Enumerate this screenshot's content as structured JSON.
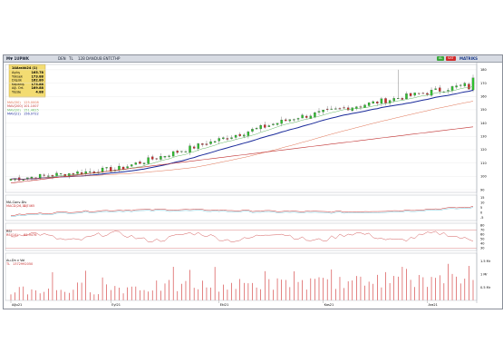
{
  "toolbar": {
    "symbol": "M▼ 1UPWK",
    "items": [
      "DEN",
      "TL",
      "12B",
      "DAN",
      "DUB",
      "ENTCTHP"
    ],
    "right_label": "MATRIKS",
    "buttons": [
      {
        "label": "AL",
        "color": "#3aa83a"
      },
      {
        "label": "SAT",
        "color": "#d02a2a"
      }
    ]
  },
  "info_box": {
    "title": "14Aralık24 (1)",
    "rows": [
      {
        "label": "Açılış",
        "value": "165.78"
      },
      {
        "label": "Yüksek",
        "value": "173.88"
      },
      {
        "label": "Düşük",
        "value": "162.80"
      },
      {
        "label": "Kapanış",
        "value": "173.88"
      },
      {
        "label": "Ağ. Ort.",
        "value": "169.88"
      },
      {
        "label": "Yüzde",
        "value": "4.88"
      }
    ]
  },
  "price_panel": {
    "legend": [
      {
        "label": "MAV(50)",
        "value": "125.0008",
        "color": "#e07050"
      },
      {
        "label": "MAV(200)",
        "value": "101.1007",
        "color": "#c03030"
      },
      {
        "label": "MAV(20)",
        "value": "151.4625",
        "color": "#60b860"
      },
      {
        "label": "MAV(21)",
        "value": "156.9722",
        "color": "#1a2a9a"
      }
    ],
    "ticks": [
      "180",
      "170",
      "160",
      "150",
      "140",
      "130",
      "120",
      "110",
      "100",
      "90"
    ],
    "ylim": [
      88,
      184
    ]
  },
  "macd_panel": {
    "title": "MA-Conv-Div",
    "legend": [
      {
        "label": "MACD(26,12)",
        "value": "8.7465",
        "color": "#c83030"
      }
    ],
    "ticks": [
      "15",
      "10",
      "5",
      "0",
      "-5"
    ]
  },
  "rsi_panel": {
    "title": "RSI",
    "legend": [
      {
        "label": "RSI(14)",
        "value": "69.9476",
        "color": "#c83030"
      }
    ],
    "ticks": [
      "80",
      "70",
      "60",
      "50",
      "40",
      "30"
    ]
  },
  "volume_panel": {
    "title": "Au-Dn v Vol",
    "legend": [
      {
        "label": "TL",
        "value": "1372992050",
        "color": "#c83030"
      }
    ],
    "ticks": [
      "1.5 Mr",
      "1 Mr",
      "0.5 Mr"
    ]
  },
  "x_axis": {
    "labels": [
      "Ağu21",
      "Eyl21",
      "Eki21",
      "Kas21",
      "Ara21"
    ]
  },
  "colors": {
    "up": "#2ec02e",
    "down": "#d02a2a",
    "grid": "#e8e8e8"
  }
}
